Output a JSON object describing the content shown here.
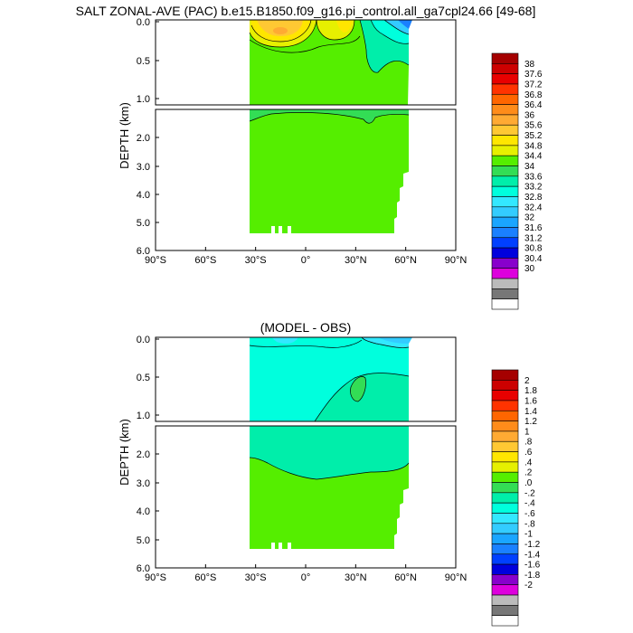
{
  "chart_data": [
    {
      "type": "heatmap",
      "title": "SALT ZONAL-AVE (PAC) b.e15.B1850.f09_g16.pi_control.all_ga7cpl24.66 [49-68]",
      "ylabel": "DEPTH (km)",
      "x_ticks": [
        "90°S",
        "60°S",
        "30°S",
        "0°",
        "30°N",
        "60°N",
        "90°N"
      ],
      "y_ticks_upper": [
        "0.0",
        "0.5",
        "1.0"
      ],
      "y_ticks_lower": [
        "2.0",
        "3.0",
        "4.0",
        "5.0",
        "6.0"
      ],
      "colorbar_labels": [
        "38",
        "37.6",
        "37.2",
        "36.8",
        "36.4",
        "36",
        "35.6",
        "35.2",
        "34.8",
        "34.4",
        "34",
        "33.6",
        "33.2",
        "32.8",
        "32.4",
        "32",
        "31.6",
        "31.2",
        "30.8",
        "30.4",
        "30"
      ],
      "colorbar_colors": [
        "#a50000",
        "#cc0000",
        "#e80000",
        "#ff3300",
        "#ff6600",
        "#ff8c1a",
        "#ffaa33",
        "#ffc833",
        "#ffe600",
        "#e6f000",
        "#55ee00",
        "#33dd55",
        "#00eeaa",
        "#00ffdd",
        "#33e8ff",
        "#33ccff",
        "#1aa5ff",
        "#1a80ff",
        "#0040ff",
        "#0000dd",
        "#8800cc",
        "#dd00dd",
        "#bbbbbb",
        "#777777",
        "#ffffff"
      ]
    },
    {
      "type": "heatmap",
      "title": "(MODEL - OBS)",
      "ylabel": "DEPTH (km)",
      "x_ticks": [
        "90°S",
        "60°S",
        "30°S",
        "0°",
        "30°N",
        "60°N",
        "90°N"
      ],
      "y_ticks_upper": [
        "0.0",
        "0.5",
        "1.0"
      ],
      "y_ticks_lower": [
        "2.0",
        "3.0",
        "4.0",
        "5.0",
        "6.0"
      ],
      "colorbar_labels": [
        "2",
        "1.8",
        "1.6",
        "1.4",
        "1.2",
        "1",
        ".8",
        ".6",
        ".4",
        ".2",
        ".0",
        "-.2",
        "-.4",
        "-.6",
        "-.8",
        "-1",
        "-1.2",
        "-1.4",
        "-1.6",
        "-1.8",
        "-2"
      ],
      "colorbar_colors": [
        "#a50000",
        "#cc0000",
        "#e80000",
        "#ff3300",
        "#ff6600",
        "#ff8c1a",
        "#ffaa33",
        "#ffc833",
        "#ffe600",
        "#e6f000",
        "#55ee00",
        "#33dd55",
        "#00eeaa",
        "#00ffdd",
        "#33e8ff",
        "#33ccff",
        "#1aa5ff",
        "#1a80ff",
        "#0040ff",
        "#0000dd",
        "#8800cc",
        "#dd00dd",
        "#bbbbbb",
        "#777777",
        "#ffffff"
      ]
    }
  ]
}
